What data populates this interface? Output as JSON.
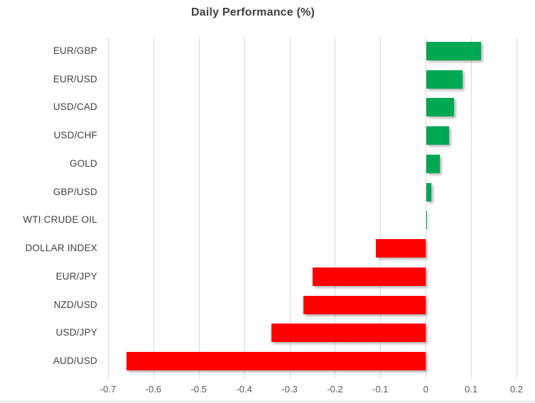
{
  "chart_data": {
    "type": "bar",
    "orientation": "horizontal",
    "title": "Daily Performance (%)",
    "categories": [
      "EUR/GBP",
      "EUR/USD",
      "USD/CAD",
      "USD/CHF",
      "GOLD",
      "GBP/USD",
      "WTI CRUDE OIL",
      "DOLLAR INDEX",
      "EUR/JPY",
      "NZD/USD",
      "USD/JPY",
      "AUD/USD"
    ],
    "values": [
      0.12,
      0.08,
      0.06,
      0.05,
      0.03,
      0.01,
      0.0,
      -0.11,
      -0.25,
      -0.27,
      -0.34,
      -0.66
    ],
    "xlabel": "",
    "ylabel": "",
    "xlim": [
      -0.7,
      0.2
    ],
    "tick_step": 0.1,
    "tick_labels": [
      "-0.7",
      "-0.6",
      "-0.5",
      "-0.4",
      "-0.3",
      "-0.2",
      "-0.1",
      "0",
      "0.1",
      "0.2"
    ],
    "grid": true,
    "legend": "none",
    "colors": {
      "positive_bar": "#00A854",
      "negative_bar": "#FF0000",
      "gridline": "#D9D9D9",
      "title_text": "#404040",
      "category_text": "#404040",
      "tick_text": "#595959"
    }
  }
}
